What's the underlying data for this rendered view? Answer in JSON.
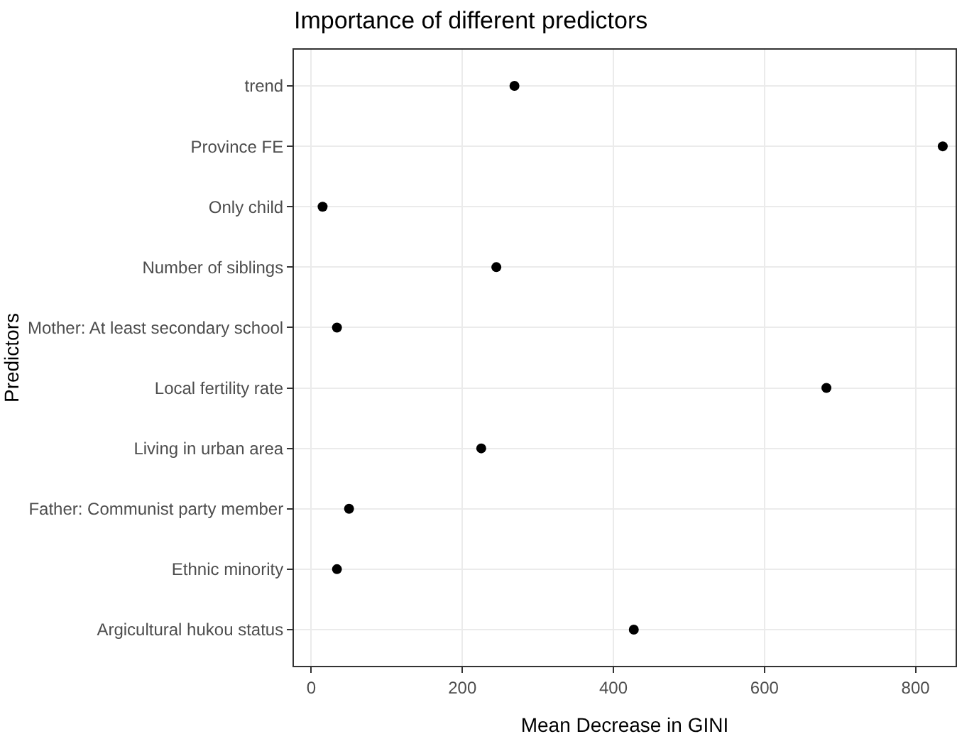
{
  "chart_data": {
    "type": "scatter",
    "title": "Importance of different predictors",
    "xlabel": "Mean Decrease in GINI",
    "ylabel": "Predictors",
    "categories": [
      "trend",
      "Province FE",
      "Only child",
      "Number of siblings",
      "Mother: At least secondary school",
      "Local fertility rate",
      "Living in urban area",
      "Father: Communist party member",
      "Ethnic minority",
      "Argicultural hukou status"
    ],
    "values": [
      269,
      836,
      15,
      245,
      34,
      682,
      225,
      50,
      34,
      427
    ],
    "color": "#000000",
    "marker": "circle",
    "orientation": "horizontal",
    "xlim": [
      -23,
      853
    ],
    "xticks": [
      0,
      200,
      400,
      600,
      800
    ],
    "grid": true
  }
}
